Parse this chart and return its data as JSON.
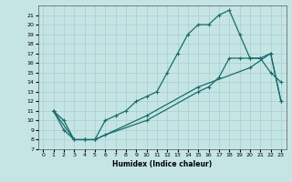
{
  "xlabel": "Humidex (Indice chaleur)",
  "bg_color": "#c5e5e5",
  "line_color": "#1a6b6b",
  "grid_color": "#a8cdcd",
  "xlim": [
    -0.5,
    23.5
  ],
  "ylim": [
    7,
    22
  ],
  "xticks": [
    0,
    1,
    2,
    3,
    4,
    5,
    6,
    7,
    8,
    9,
    10,
    11,
    12,
    13,
    14,
    15,
    16,
    17,
    18,
    19,
    20,
    21,
    22,
    23
  ],
  "yticks": [
    7,
    8,
    9,
    10,
    11,
    12,
    13,
    14,
    15,
    16,
    17,
    18,
    19,
    20,
    21
  ],
  "curve1_x": [
    1,
    2,
    3,
    4,
    5,
    6,
    7,
    8,
    9,
    10,
    11,
    12,
    13,
    14,
    15,
    16,
    17,
    18,
    19,
    20,
    21,
    22,
    23
  ],
  "curve1_y": [
    11,
    10,
    8,
    8,
    8,
    10,
    10.5,
    11,
    12,
    12.5,
    13,
    15,
    17,
    19,
    20,
    20,
    21,
    21.5,
    19,
    16.5,
    16.5,
    15,
    14
  ],
  "curve2_x": [
    1,
    2,
    3,
    4,
    5,
    6,
    10,
    15,
    16,
    17,
    18,
    19,
    20,
    21,
    22,
    23
  ],
  "curve2_y": [
    11,
    9,
    8,
    8,
    8,
    8.5,
    10,
    13,
    13.5,
    14.5,
    16.5,
    16.5,
    16.5,
    16.5,
    17,
    12
  ],
  "curve3_x": [
    1,
    3,
    4,
    5,
    10,
    15,
    20,
    22,
    23
  ],
  "curve3_y": [
    11,
    8,
    8,
    8,
    10.5,
    13.5,
    15.5,
    17,
    12
  ]
}
